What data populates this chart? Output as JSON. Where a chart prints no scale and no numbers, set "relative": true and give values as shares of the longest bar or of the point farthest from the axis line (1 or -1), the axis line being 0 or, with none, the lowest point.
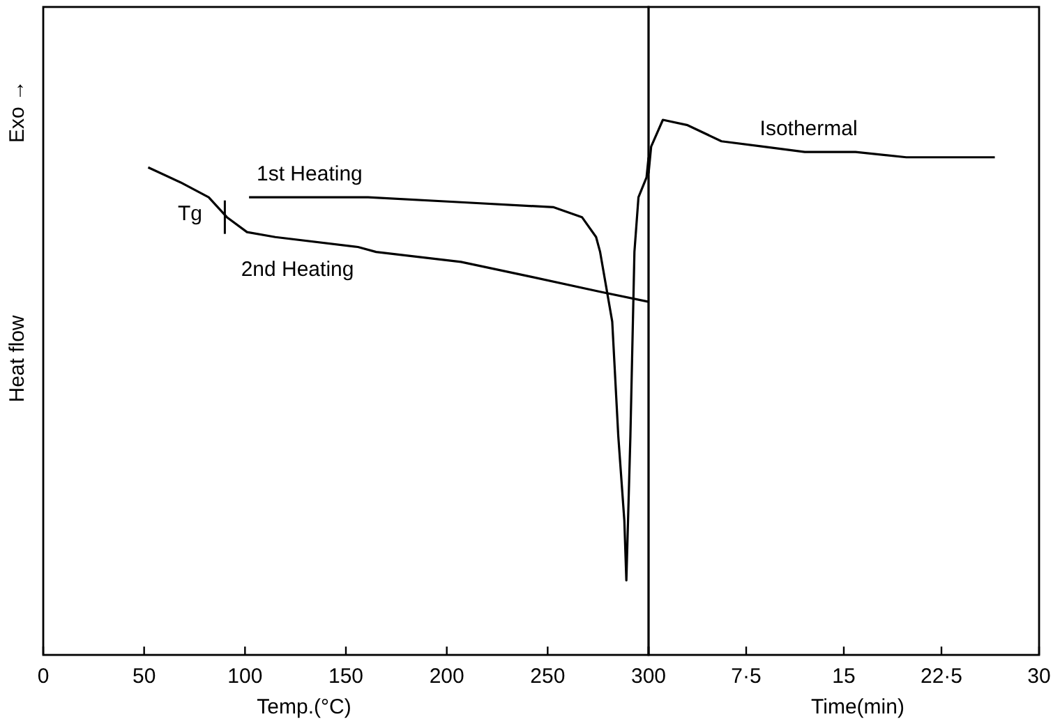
{
  "chart_data": [
    {
      "type": "line",
      "relative": true,
      "xlabel": "Temp.(°C)",
      "ylabel": "Heat flow",
      "xlim": [
        0,
        300
      ],
      "xticks": [
        0,
        50,
        100,
        150,
        200,
        250,
        300
      ],
      "annotations": [
        {
          "text": "Tg",
          "x": 90,
          "y": 0.88
        },
        "Exo →"
      ],
      "series": [
        {
          "name": "1st Heating",
          "color": "#000000",
          "x": [
            102,
            161,
            207,
            253,
            267,
            274,
            276,
            282,
            285,
            288,
            289,
            291,
            293,
            295,
            299,
            300
          ],
          "values": [
            0.92,
            0.92,
            0.91,
            0.9,
            0.88,
            0.84,
            0.81,
            0.67,
            0.44,
            0.27,
            0.15,
            0.44,
            0.81,
            0.92,
            0.96,
            1
          ]
        },
        {
          "name": "2nd Heating",
          "color": "#000000",
          "x": [
            52,
            68,
            82,
            91,
            101,
            115,
            156,
            165,
            207,
            242,
            276,
            300
          ],
          "values": [
            0.98,
            0.95,
            0.92,
            0.88,
            0.85,
            0.84,
            0.82,
            0.81,
            0.79,
            0.76,
            0.73,
            0.71
          ]
        }
      ]
    },
    {
      "type": "line",
      "relative": true,
      "xlabel": "Time(min)",
      "xlim": [
        0,
        30
      ],
      "xticks": [
        {
          "value": 0,
          "label": null
        },
        {
          "value": 7.5,
          "label": "7·5"
        },
        15,
        {
          "value": 22.5,
          "label": "22·5"
        },
        30
      ],
      "series": [
        {
          "name": "Isothermal",
          "color": "#000000",
          "x": [
            0,
            0.2,
            1.1,
            3,
            5.6,
            8.8,
            12,
            15.9,
            19.8,
            26.6
          ],
          "values": [
            0.9,
            0.95,
            1,
            0.99,
            0.96,
            0.95,
            0.94,
            0.94,
            0.93,
            0.93
          ]
        }
      ]
    }
  ]
}
